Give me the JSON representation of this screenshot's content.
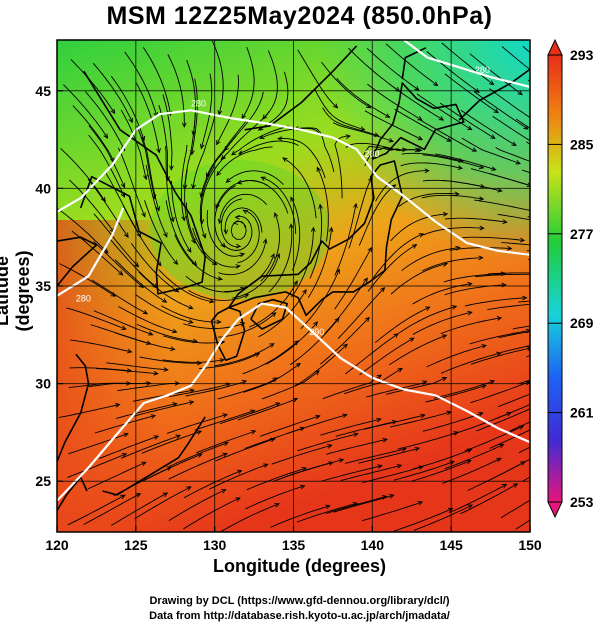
{
  "title": "MSM 12Z25May2024 (850.0hPa)",
  "x_axis": {
    "label": "Longitude (degrees)",
    "ticks": [
      {
        "value": 120,
        "label": "120"
      },
      {
        "value": 125,
        "label": "125"
      },
      {
        "value": 130,
        "label": "130"
      },
      {
        "value": 135,
        "label": "135"
      },
      {
        "value": 140,
        "label": "140"
      },
      {
        "value": 145,
        "label": "145"
      },
      {
        "value": 150,
        "label": "150"
      }
    ],
    "range": [
      120,
      150
    ]
  },
  "y_axis": {
    "label": "Latitude  (degrees)",
    "ticks": [
      {
        "value": 25,
        "label": "25"
      },
      {
        "value": 30,
        "label": "30"
      },
      {
        "value": 35,
        "label": "35"
      },
      {
        "value": 40,
        "label": "40"
      },
      {
        "value": 45,
        "label": "45"
      }
    ],
    "range": [
      22.4,
      47.6
    ]
  },
  "colorbar": {
    "min": 253,
    "max": 293,
    "tick_labels": [
      "293",
      "285",
      "277",
      "269",
      "261",
      "253"
    ],
    "colors": [
      "#e8157a",
      "#3f2bd6",
      "#1e63f2",
      "#18d3da",
      "#22cc3a",
      "#c9e21a",
      "#ef7f12",
      "#e62f1a"
    ]
  },
  "contour_labels": [
    {
      "text": "280"
    },
    {
      "text": "280"
    },
    {
      "text": "280"
    },
    {
      "text": "280"
    },
    {
      "text": "290"
    }
  ],
  "credits": {
    "line1": "Drawing by DCL (https://www.gfd-dennou.org/library/dcl/)",
    "line2": "Data from http://database.rish.kyoto-u.ac.jp/arch/jmadata/"
  }
}
